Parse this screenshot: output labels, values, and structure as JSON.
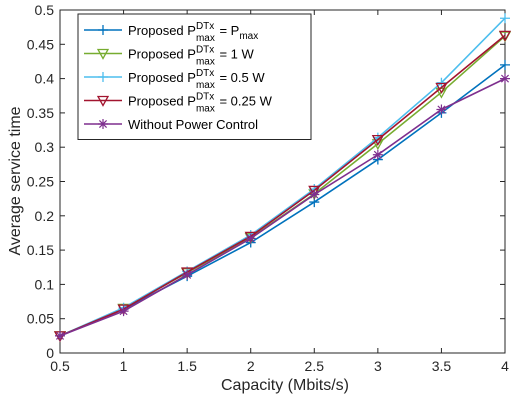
{
  "chart_data": {
    "type": "line",
    "xlabel": "Capacity (Mbits/s)",
    "ylabel": "Average service time",
    "xlim": [
      0.5,
      4
    ],
    "ylim": [
      0,
      0.5
    ],
    "xticks": [
      "0.5",
      "1",
      "1.5",
      "2",
      "2.5",
      "3",
      "3.5",
      "4"
    ],
    "yticks": [
      "0",
      "0.05",
      "0.1",
      "0.15",
      "0.2",
      "0.25",
      "0.3",
      "0.35",
      "0.4",
      "0.45",
      "0.5"
    ],
    "x": [
      0.5,
      1,
      1.5,
      2,
      2.5,
      3,
      3.5,
      4
    ],
    "grid": false,
    "legend_position": "top-left",
    "series": [
      {
        "name": "Proposed P_max^DTx = P_max",
        "legend": {
          "pre": "Proposed P",
          "sup": "DTx",
          "sub": "max",
          "post": " = P",
          "post_sub": "max"
        },
        "color": "#0072BD",
        "marker": "plus",
        "values": [
          0.025,
          0.064,
          0.112,
          0.161,
          0.22,
          0.282,
          0.35,
          0.42
        ]
      },
      {
        "name": "Proposed P_max^DTx = 1 W",
        "legend": {
          "pre": "Proposed P",
          "sup": "DTx",
          "sub": "max",
          "post": " = 1 W",
          "post_sub": ""
        },
        "color": "#77AC30",
        "marker": "triangle-down",
        "values": [
          0.025,
          0.065,
          0.117,
          0.168,
          0.232,
          0.305,
          0.38,
          0.462
        ]
      },
      {
        "name": "Proposed P_max^DTx = 0.5 W",
        "legend": {
          "pre": "Proposed P",
          "sup": "DTx",
          "sub": "max",
          "post": " = 0.5 W",
          "post_sub": ""
        },
        "color": "#4DBEEE",
        "marker": "plus",
        "values": [
          0.025,
          0.066,
          0.119,
          0.172,
          0.239,
          0.314,
          0.394,
          0.488
        ]
      },
      {
        "name": "Proposed P_max^DTx = 0.25 W",
        "legend": {
          "pre": "Proposed P",
          "sup": "DTx",
          "sub": "max",
          "post": " = 0.25 W",
          "post_sub": ""
        },
        "color": "#A2142F",
        "marker": "triangle-down",
        "values": [
          0.025,
          0.064,
          0.118,
          0.17,
          0.237,
          0.311,
          0.387,
          0.463
        ]
      },
      {
        "name": "Without Power Control",
        "legend": {
          "pre": "Without Power Control",
          "sup": "",
          "sub": "",
          "post": "",
          "post_sub": ""
        },
        "color": "#7E2F8E",
        "marker": "asterisk",
        "values": [
          0.025,
          0.061,
          0.114,
          0.167,
          0.231,
          0.289,
          0.355,
          0.4
        ]
      }
    ]
  }
}
